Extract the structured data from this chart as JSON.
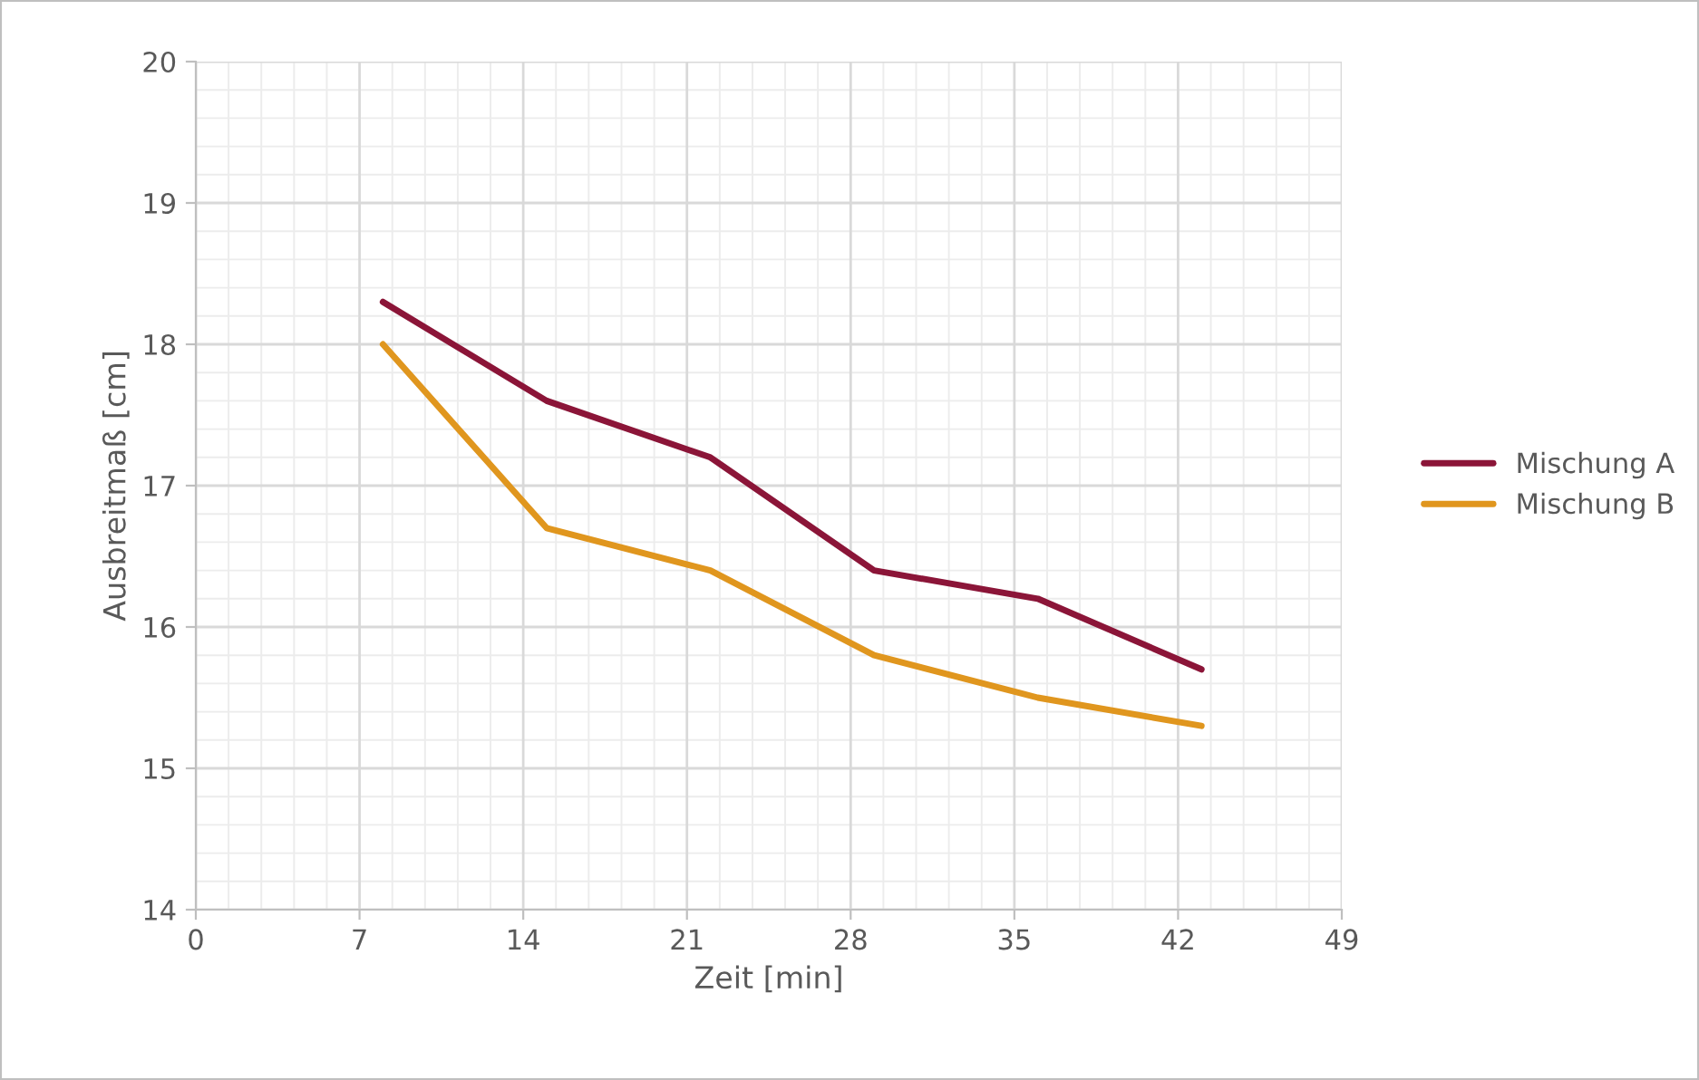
{
  "chart_data": {
    "type": "line",
    "xlabel": "Zeit [min]",
    "ylabel": "Ausbreitmaß [cm]",
    "x": [
      8,
      15,
      22,
      29,
      36,
      43
    ],
    "series": [
      {
        "name": "Mischung A",
        "color": "#8b1538",
        "values": [
          18.3,
          17.6,
          17.2,
          16.4,
          16.2,
          15.7
        ]
      },
      {
        "name": "Mischung B",
        "color": "#e0961e",
        "values": [
          18.0,
          16.7,
          16.4,
          15.8,
          15.5,
          15.3
        ]
      }
    ],
    "xlim": [
      0,
      49
    ],
    "xticks": [
      0,
      7,
      14,
      21,
      28,
      35,
      42,
      49
    ],
    "ylim": [
      14,
      20
    ],
    "yticks": [
      14,
      15,
      16,
      17,
      18,
      19,
      20
    ],
    "grid": true,
    "legend": "right",
    "marker": "none",
    "line_style": "solid"
  }
}
